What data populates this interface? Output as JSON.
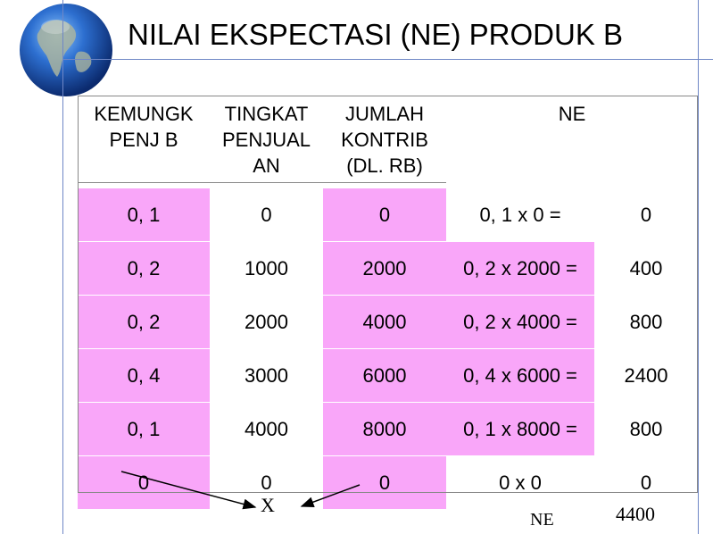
{
  "title": "NILAI EKSPECTASI (NE) PRODUK B",
  "headers": {
    "col1": [
      "KEMUNGK",
      "PENJ B"
    ],
    "col2": [
      "TINGKAT",
      "PENJUAL",
      "AN"
    ],
    "col3": [
      "JUMLAH",
      "KONTRIB",
      "(DL. RB)"
    ],
    "col4": "NE"
  },
  "rows": [
    {
      "p": "0, 1",
      "t": "0",
      "j": "0",
      "calc": "0, 1 x 0  =",
      "ne": "0"
    },
    {
      "p": "0, 2",
      "t": "1000",
      "j": "2000",
      "calc": "0, 2 x 2000 =",
      "ne": "400"
    },
    {
      "p": "0, 2",
      "t": "2000",
      "j": "4000",
      "calc": "0, 2 x 4000 =",
      "ne": "800"
    },
    {
      "p": "0, 4",
      "t": "3000",
      "j": "6000",
      "calc": "0, 4 x 6000 =",
      "ne": "2400"
    },
    {
      "p": "0, 1",
      "t": "4000",
      "j": "8000",
      "calc": "0, 1 x 8000 =",
      "ne": "800"
    },
    {
      "p": "0",
      "t": "0",
      "j": "0",
      "calc": "0 x 0",
      "ne": "0"
    }
  ],
  "annotations": {
    "x_label": "X",
    "ne_label": "NE",
    "total": "4400"
  },
  "colors": {
    "pink": "#f9a6f9",
    "accent_line": "#6f87c6"
  },
  "icons": {
    "decoration": "globe-icon"
  }
}
